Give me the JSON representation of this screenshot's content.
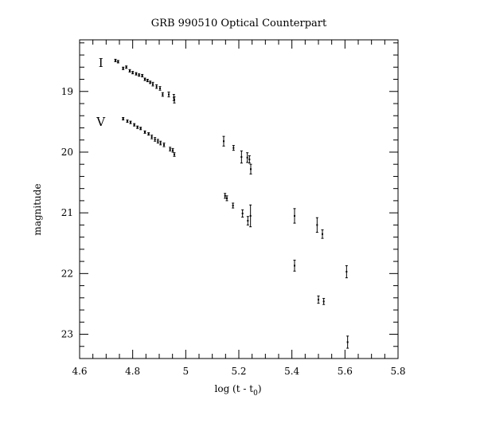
{
  "chart_data": {
    "type": "scatter",
    "title": "GRB 990510 Optical Counterpart",
    "xlabel": "log (t - t",
    "xlabel_subscript": "0",
    "xlabel_suffix": ")",
    "ylabel": "magnitude",
    "xlim": [
      4.6,
      5.8
    ],
    "ylim": [
      23.4,
      18.15
    ],
    "y_inverted": true,
    "x_ticks": [
      "4.6",
      "4.8",
      "5",
      "5.2",
      "5.4",
      "5.6",
      "5.8"
    ],
    "x_tick_values": [
      4.6,
      4.8,
      5.0,
      5.2,
      5.4,
      5.6,
      5.8
    ],
    "y_ticks": [
      "19",
      "20",
      "21",
      "22",
      "23"
    ],
    "y_tick_values": [
      19,
      20,
      21,
      22,
      23
    ],
    "grid": false,
    "series": [
      {
        "name": "I",
        "label_pos": [
          4.68,
          18.53
        ],
        "points": [
          {
            "x": 4.735,
            "y": 18.49,
            "err": 0.02
          },
          {
            "x": 4.745,
            "y": 18.51,
            "err": 0.02
          },
          {
            "x": 4.764,
            "y": 18.62,
            "err": 0.02
          },
          {
            "x": 4.776,
            "y": 18.6,
            "err": 0.02
          },
          {
            "x": 4.789,
            "y": 18.66,
            "err": 0.02
          },
          {
            "x": 4.8,
            "y": 18.69,
            "err": 0.02
          },
          {
            "x": 4.813,
            "y": 18.71,
            "err": 0.02
          },
          {
            "x": 4.824,
            "y": 18.73,
            "err": 0.02
          },
          {
            "x": 4.836,
            "y": 18.74,
            "err": 0.02
          },
          {
            "x": 4.846,
            "y": 18.8,
            "err": 0.02
          },
          {
            "x": 4.856,
            "y": 18.82,
            "err": 0.02
          },
          {
            "x": 4.866,
            "y": 18.85,
            "err": 0.02
          },
          {
            "x": 4.876,
            "y": 18.88,
            "err": 0.03
          },
          {
            "x": 4.89,
            "y": 18.92,
            "err": 0.03
          },
          {
            "x": 4.903,
            "y": 18.95,
            "err": 0.03
          },
          {
            "x": 4.913,
            "y": 19.05,
            "err": 0.03
          },
          {
            "x": 4.936,
            "y": 19.05,
            "err": 0.04
          },
          {
            "x": 4.955,
            "y": 19.1,
            "err": 0.05
          },
          {
            "x": 4.957,
            "y": 19.14,
            "err": 0.05
          },
          {
            "x": 5.143,
            "y": 19.82,
            "err": 0.08
          },
          {
            "x": 5.18,
            "y": 19.93,
            "err": 0.04
          },
          {
            "x": 5.21,
            "y": 20.08,
            "err": 0.1
          },
          {
            "x": 5.232,
            "y": 20.09,
            "err": 0.08
          },
          {
            "x": 5.24,
            "y": 20.12,
            "err": 0.06
          },
          {
            "x": 5.245,
            "y": 20.28,
            "err": 0.08
          },
          {
            "x": 5.41,
            "y": 21.05,
            "err": 0.12
          },
          {
            "x": 5.495,
            "y": 21.2,
            "err": 0.12
          },
          {
            "x": 5.515,
            "y": 21.35,
            "err": 0.07
          },
          {
            "x": 5.606,
            "y": 21.97,
            "err": 0.1
          }
        ]
      },
      {
        "name": "V",
        "label_pos": [
          4.68,
          19.5
        ],
        "points": [
          {
            "x": 4.764,
            "y": 19.45,
            "err": 0.02
          },
          {
            "x": 4.78,
            "y": 19.49,
            "err": 0.02
          },
          {
            "x": 4.792,
            "y": 19.51,
            "err": 0.02
          },
          {
            "x": 4.806,
            "y": 19.55,
            "err": 0.02
          },
          {
            "x": 4.818,
            "y": 19.59,
            "err": 0.02
          },
          {
            "x": 4.83,
            "y": 19.61,
            "err": 0.02
          },
          {
            "x": 4.846,
            "y": 19.67,
            "err": 0.02
          },
          {
            "x": 4.86,
            "y": 19.7,
            "err": 0.02
          },
          {
            "x": 4.872,
            "y": 19.75,
            "err": 0.03
          },
          {
            "x": 4.884,
            "y": 19.79,
            "err": 0.03
          },
          {
            "x": 4.895,
            "y": 19.82,
            "err": 0.03
          },
          {
            "x": 4.905,
            "y": 19.85,
            "err": 0.03
          },
          {
            "x": 4.918,
            "y": 19.88,
            "err": 0.03
          },
          {
            "x": 4.941,
            "y": 19.95,
            "err": 0.03
          },
          {
            "x": 4.951,
            "y": 19.97,
            "err": 0.03
          },
          {
            "x": 4.957,
            "y": 20.04,
            "err": 0.03
          },
          {
            "x": 5.148,
            "y": 20.72,
            "err": 0.04
          },
          {
            "x": 5.155,
            "y": 20.76,
            "err": 0.04
          },
          {
            "x": 5.178,
            "y": 20.88,
            "err": 0.04
          },
          {
            "x": 5.214,
            "y": 21.01,
            "err": 0.06
          },
          {
            "x": 5.234,
            "y": 21.13,
            "err": 0.07
          },
          {
            "x": 5.244,
            "y": 21.05,
            "err": 0.18
          },
          {
            "x": 5.41,
            "y": 21.87,
            "err": 0.09
          },
          {
            "x": 5.5,
            "y": 22.43,
            "err": 0.06
          },
          {
            "x": 5.52,
            "y": 22.46,
            "err": 0.05
          },
          {
            "x": 5.61,
            "y": 23.13,
            "err": 0.1
          }
        ]
      }
    ]
  }
}
